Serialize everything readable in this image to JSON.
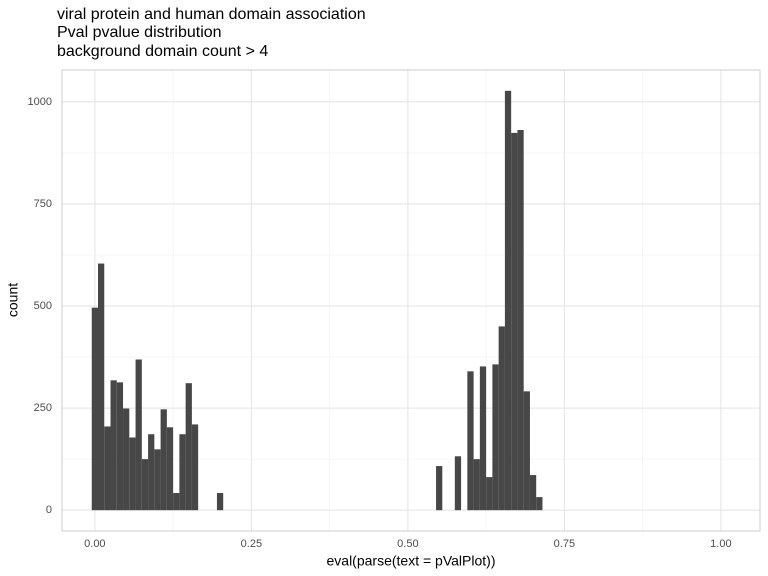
{
  "chart_data": {
    "type": "histogram",
    "title": [
      "viral protein and human domain association",
      "Pval pvalue distribution",
      "background domain count > 4"
    ],
    "x_label": "eval(parse(text = pValPlot))",
    "y_label": "count",
    "color": "#474747",
    "grid": true,
    "bins": [
      -0.005,
      0.005,
      0.015,
      0.025,
      0.035,
      0.045,
      0.055,
      0.065,
      0.075,
      0.085,
      0.095,
      0.105,
      0.115,
      0.125,
      0.135,
      0.145,
      0.155,
      0.165,
      0.175,
      0.185,
      0.195,
      0.205,
      0.215,
      0.225,
      0.235,
      0.245,
      0.255,
      0.265,
      0.275,
      0.285,
      0.295,
      0.305,
      0.315,
      0.325,
      0.335,
      0.345,
      0.355,
      0.365,
      0.375,
      0.385,
      0.395,
      0.405,
      0.415,
      0.425,
      0.435,
      0.445,
      0.455,
      0.465,
      0.475,
      0.485,
      0.495,
      0.505,
      0.515,
      0.525,
      0.535,
      0.545,
      0.555,
      0.565,
      0.575,
      0.585,
      0.595,
      0.605,
      0.615,
      0.625,
      0.635,
      0.645,
      0.655,
      0.665,
      0.675,
      0.685,
      0.695,
      0.705,
      0.715
    ],
    "values": [
      496,
      604,
      205,
      318,
      313,
      249,
      178,
      369,
      125,
      186,
      149,
      247,
      203,
      42,
      186,
      311,
      210,
      0,
      0,
      0,
      42,
      0,
      0,
      0,
      0,
      0,
      0,
      0,
      0,
      0,
      0,
      0,
      0,
      0,
      0,
      0,
      0,
      0,
      0,
      0,
      0,
      0,
      0,
      0,
      0,
      0,
      0,
      0,
      0,
      0,
      0,
      0,
      0,
      0,
      0,
      108,
      0,
      0,
      132,
      0,
      340,
      125,
      352,
      81,
      357,
      450,
      1027,
      924,
      931,
      291,
      86,
      32
    ],
    "xlim": [
      -0.0525,
      1.0625
    ],
    "ylim": [
      -51,
      1078
    ],
    "xticks": [
      {
        "value": 0,
        "label": "0.00"
      },
      0.25,
      {
        "value": 0.5,
        "label": "0.50"
      },
      0.75,
      {
        "value": 1,
        "label": "1.00"
      }
    ],
    "yticks": [
      0,
      250,
      500,
      750,
      1000
    ]
  }
}
